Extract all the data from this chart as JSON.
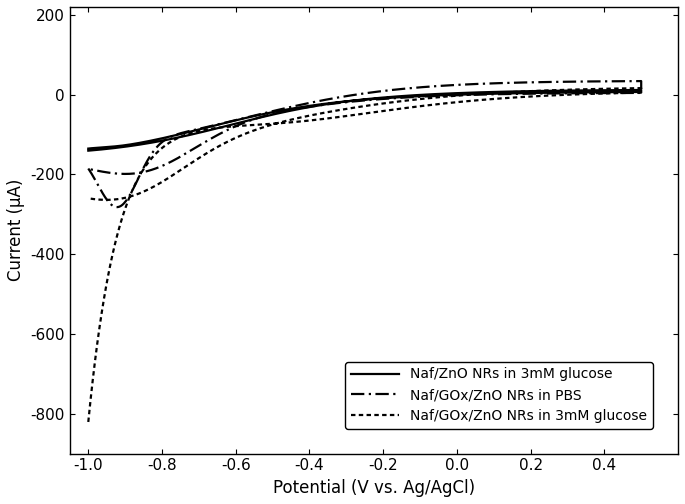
{
  "title": "",
  "xlabel": "Potential (V vs. Ag/AgCl)",
  "ylabel": "Current (μA)",
  "xlim": [
    -1.05,
    0.6
  ],
  "ylim": [
    -900,
    220
  ],
  "xticks": [
    -1.0,
    -0.8,
    -0.6,
    -0.4,
    -0.2,
    0.0,
    0.2,
    0.4
  ],
  "yticks": [
    -800,
    -600,
    -400,
    -200,
    0,
    200
  ],
  "background_color": "#ffffff",
  "legend_labels": [
    "Naf/ZnO NRs in 3mM glucose",
    "Naf/GOx/ZnO NRs in PBS",
    "Naf/GOx/ZnO NRs in 3mM glucose"
  ],
  "line_color": "#000000",
  "figsize": [
    6.85,
    5.04
  ],
  "dpi": 100
}
